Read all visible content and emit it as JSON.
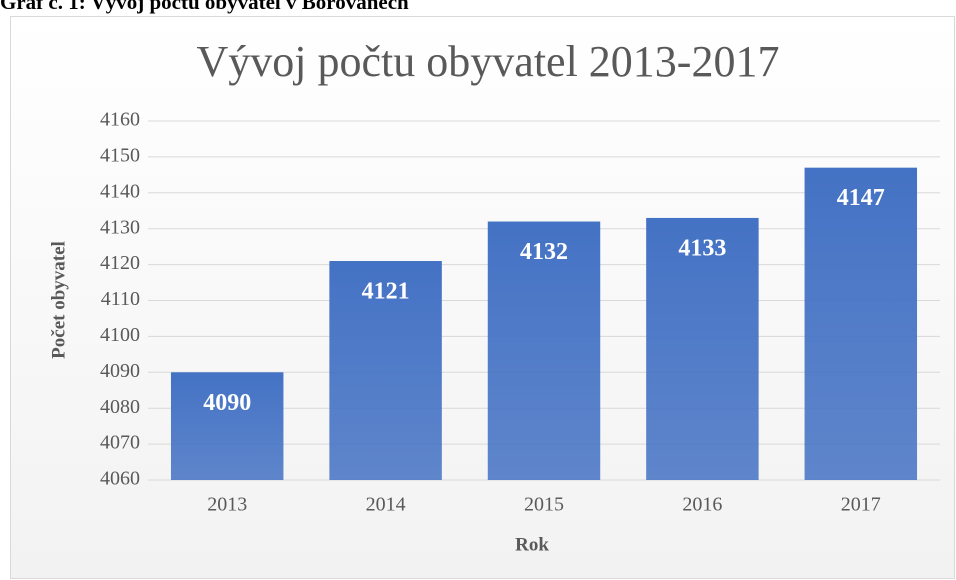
{
  "caption": "Graf č. 1: Vývoj počtu obyvatel v Borovanech",
  "chart_data": {
    "type": "bar",
    "title": "Vývoj počtu obyvatel 2013-2017",
    "x_label": "Rok",
    "y_label": "Počet obyvatel",
    "categories": [
      "2013",
      "2014",
      "2015",
      "2016",
      "2017"
    ],
    "values": [
      4090,
      4121,
      4132,
      4133,
      4147
    ],
    "color": "#4472c4",
    "ylim": [
      4060,
      4160
    ],
    "yticks": [
      4060,
      4070,
      4080,
      4090,
      4100,
      4110,
      4120,
      4130,
      4140,
      4150,
      4160
    ],
    "grid": true
  }
}
